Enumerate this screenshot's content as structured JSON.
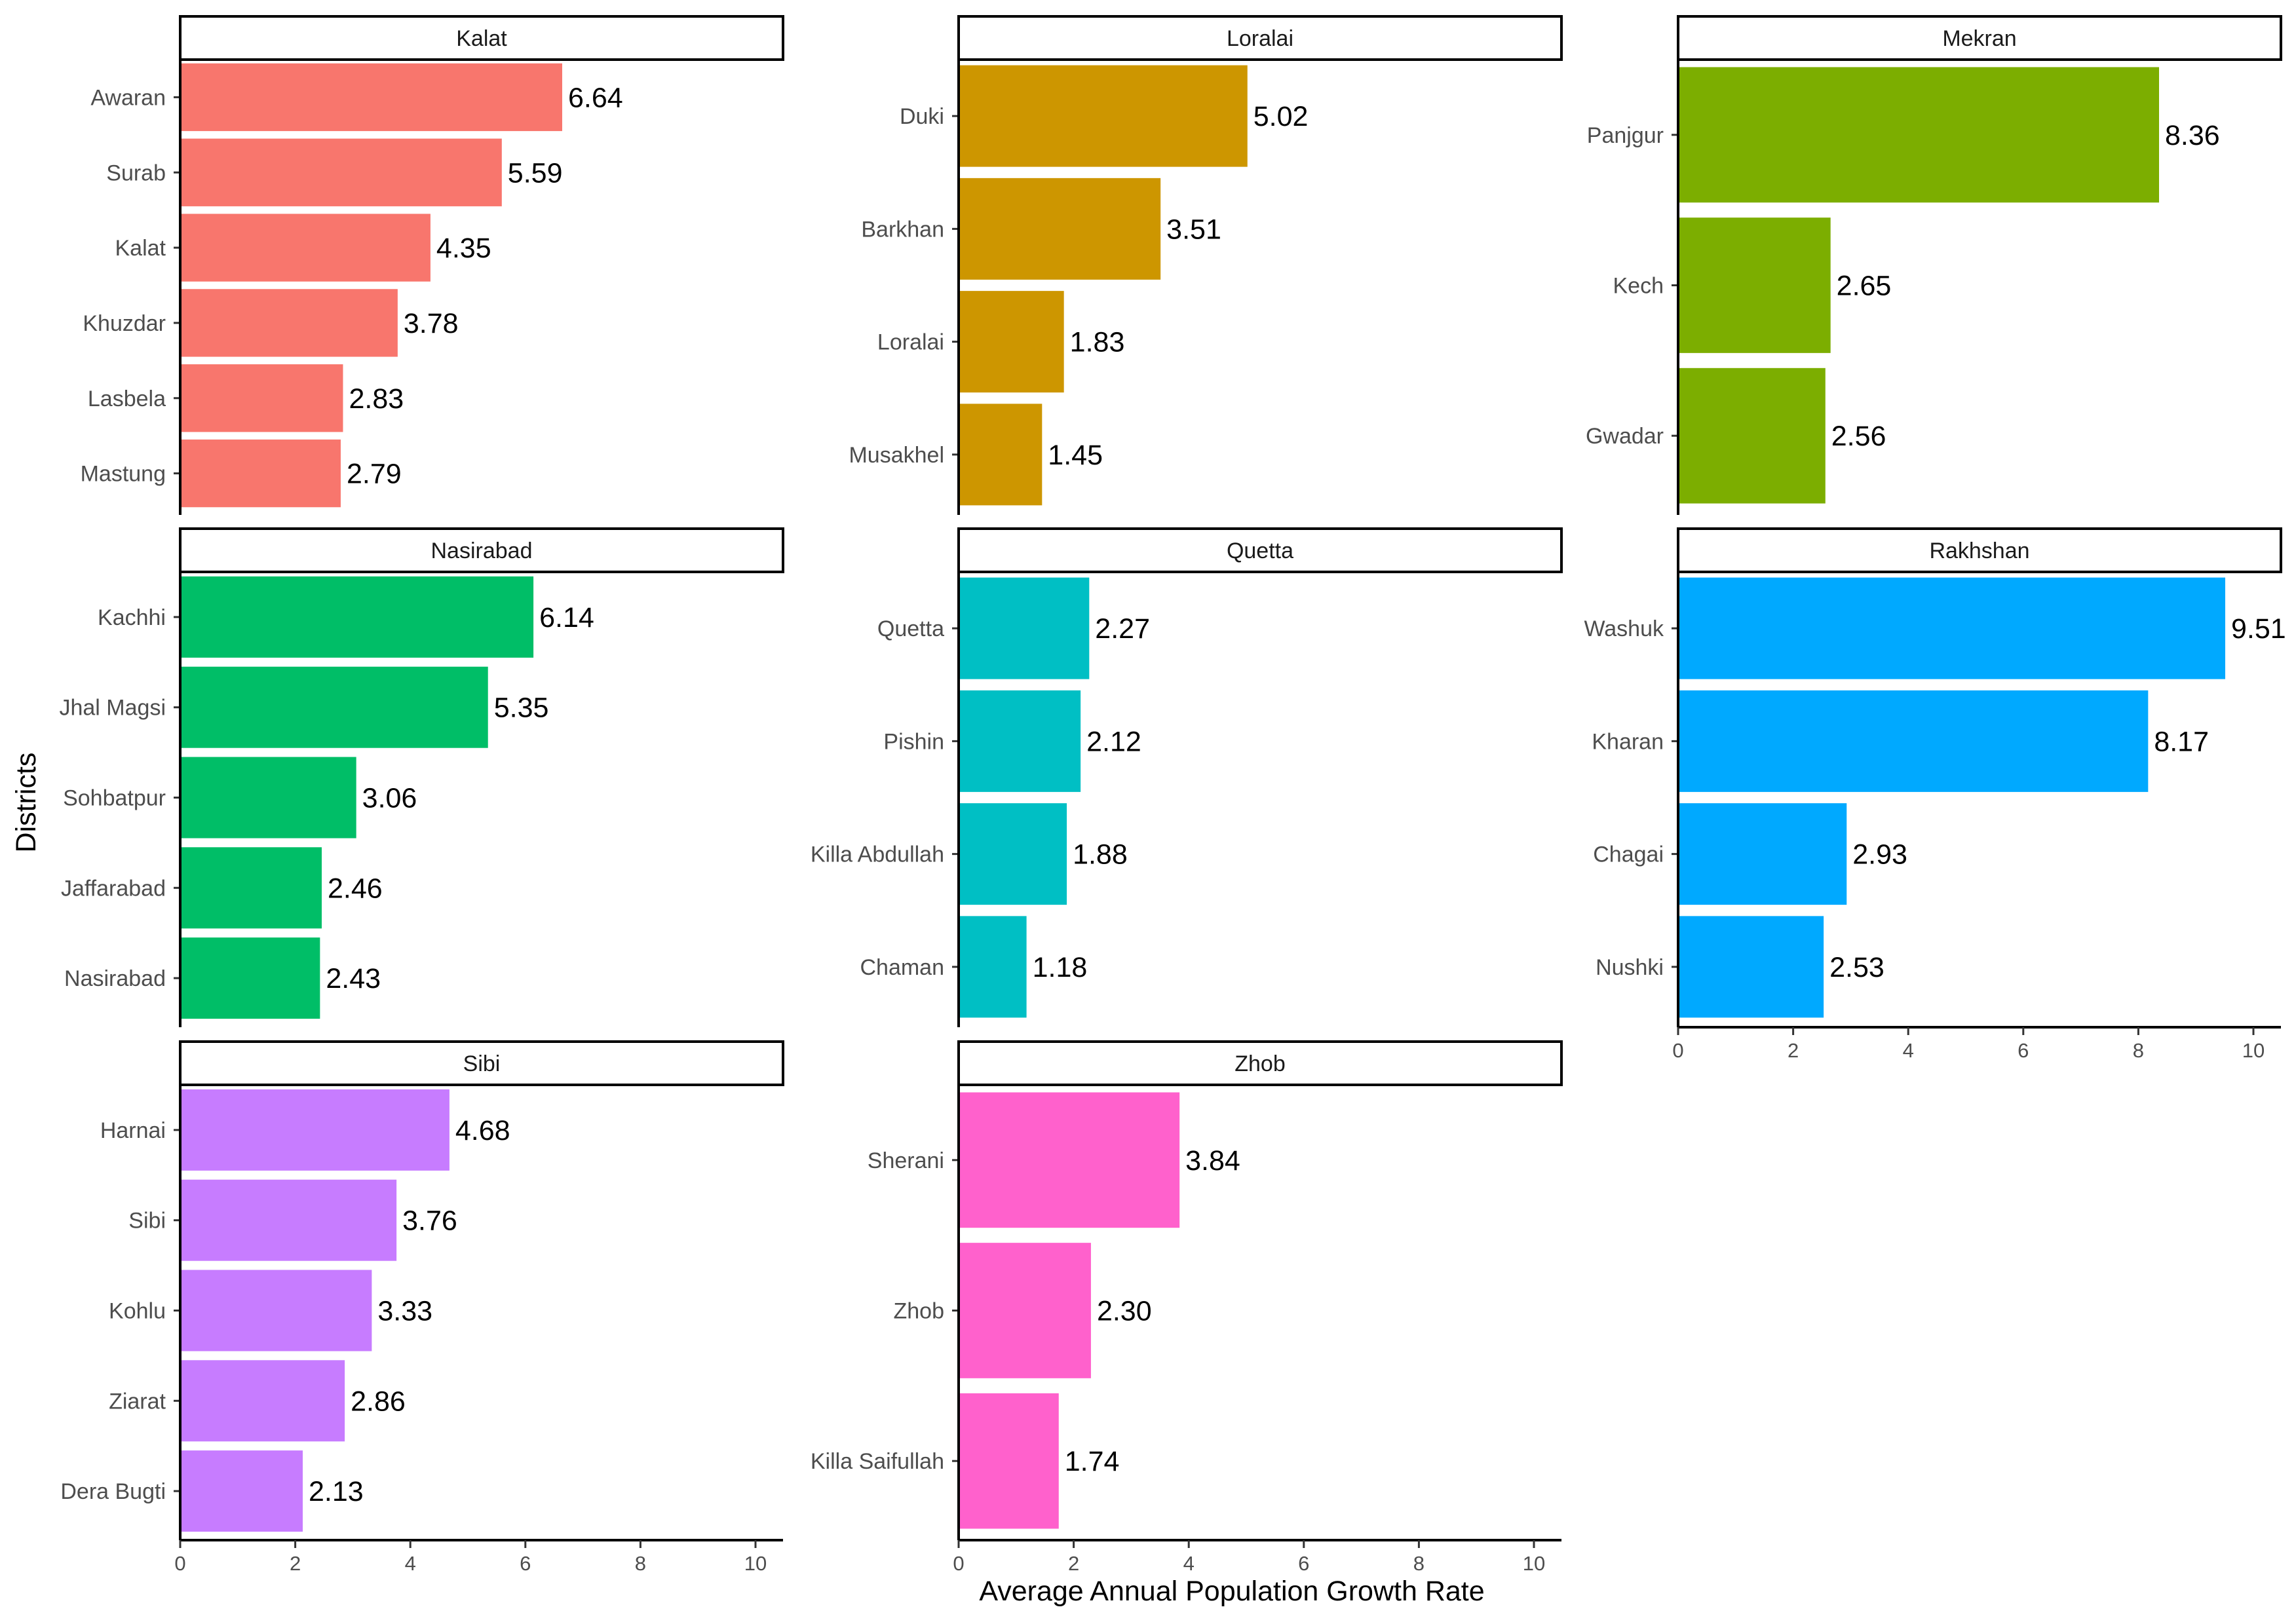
{
  "chart_data": {
    "type": "bar",
    "orientation": "horizontal",
    "facet": "wrap",
    "xlabel": "Average Annual Population Growth Rate",
    "ylabel": "Districts",
    "xlim": [
      0,
      10
    ],
    "xticks": [
      "0",
      "2",
      "4",
      "6",
      "8",
      "10"
    ],
    "grid": false,
    "legend": "none",
    "panels": [
      {
        "division": "Kalat",
        "color": "#F8766D",
        "bars": [
          {
            "district": "Awaran",
            "value": 6.64,
            "label": "6.64"
          },
          {
            "district": "Surab",
            "value": 5.59,
            "label": "5.59"
          },
          {
            "district": "Kalat",
            "value": 4.35,
            "label": "4.35"
          },
          {
            "district": "Khuzdar",
            "value": 3.78,
            "label": "3.78"
          },
          {
            "district": "Lasbela",
            "value": 2.83,
            "label": "2.83"
          },
          {
            "district": "Mastung",
            "value": 2.79,
            "label": "2.79"
          }
        ]
      },
      {
        "division": "Loralai",
        "color": "#CD9600",
        "bars": [
          {
            "district": "Duki",
            "value": 5.02,
            "label": "5.02"
          },
          {
            "district": "Barkhan",
            "value": 3.51,
            "label": "3.51"
          },
          {
            "district": "Loralai",
            "value": 1.83,
            "label": "1.83"
          },
          {
            "district": "Musakhel",
            "value": 1.45,
            "label": "1.45"
          }
        ]
      },
      {
        "division": "Mekran",
        "color": "#7CAE00",
        "bars": [
          {
            "district": "Panjgur",
            "value": 8.36,
            "label": "8.36"
          },
          {
            "district": "Kech",
            "value": 2.65,
            "label": "2.65"
          },
          {
            "district": "Gwadar",
            "value": 2.56,
            "label": "2.56"
          }
        ]
      },
      {
        "division": "Nasirabad",
        "color": "#00BE67",
        "bars": [
          {
            "district": "Kachhi",
            "value": 6.14,
            "label": "6.14"
          },
          {
            "district": "Jhal Magsi",
            "value": 5.35,
            "label": "5.35"
          },
          {
            "district": "Sohbatpur",
            "value": 3.06,
            "label": "3.06"
          },
          {
            "district": "Jaffarabad",
            "value": 2.46,
            "label": "2.46"
          },
          {
            "district": "Nasirabad",
            "value": 2.43,
            "label": "2.43"
          }
        ]
      },
      {
        "division": "Quetta",
        "color": "#00BFC4",
        "bars": [
          {
            "district": "Quetta",
            "value": 2.27,
            "label": "2.27"
          },
          {
            "district": "Pishin",
            "value": 2.12,
            "label": "2.12"
          },
          {
            "district": "Killa Abdullah",
            "value": 1.88,
            "label": "1.88"
          },
          {
            "district": "Chaman",
            "value": 1.18,
            "label": "1.18"
          }
        ]
      },
      {
        "division": "Rakhshan",
        "color": "#00A9FF",
        "bars": [
          {
            "district": "Washuk",
            "value": 9.51,
            "label": "9.51"
          },
          {
            "district": "Kharan",
            "value": 8.17,
            "label": "8.17"
          },
          {
            "district": "Chagai",
            "value": 2.93,
            "label": "2.93"
          },
          {
            "district": "Nushki",
            "value": 2.53,
            "label": "2.53"
          }
        ]
      },
      {
        "division": "Sibi",
        "color": "#C77CFF",
        "bars": [
          {
            "district": "Harnai",
            "value": 4.68,
            "label": "4.68"
          },
          {
            "district": "Sibi",
            "value": 3.76,
            "label": "3.76"
          },
          {
            "district": "Kohlu",
            "value": 3.33,
            "label": "3.33"
          },
          {
            "district": "Ziarat",
            "value": 2.86,
            "label": "2.86"
          },
          {
            "district": "Dera Bugti",
            "value": 2.13,
            "label": "2.13"
          }
        ]
      },
      {
        "division": "Zhob",
        "color": "#FF61CC",
        "bars": [
          {
            "district": "Sherani",
            "value": 3.84,
            "label": "3.84"
          },
          {
            "district": "Zhob",
            "value": 2.3,
            "label": "2.30"
          },
          {
            "district": "Killa Saifullah",
            "value": 1.74,
            "label": "1.74"
          }
        ]
      }
    ]
  }
}
